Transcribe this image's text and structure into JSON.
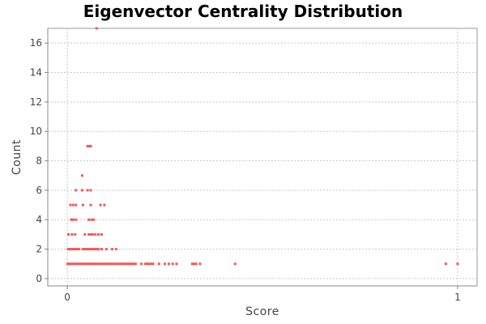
{
  "chart_data": {
    "type": "scatter",
    "title": "Eigenvector Centrality Distribution",
    "xlabel": "Score",
    "ylabel": "Count",
    "xlim": [
      -0.05,
      1.05
    ],
    "ylim": [
      -0.5,
      17.0
    ],
    "xticks": [
      0,
      1
    ],
    "yticks": [
      0,
      2,
      4,
      6,
      8,
      10,
      12,
      14,
      16
    ],
    "grid": true,
    "legend": "none",
    "point_color": "#f25a5a",
    "series": [
      {
        "points": [
          [
            0.075,
            17
          ],
          [
            0.052,
            9
          ],
          [
            0.056,
            9
          ],
          [
            0.06,
            9
          ],
          [
            0.038,
            7
          ],
          [
            0.022,
            6
          ],
          [
            0.038,
            6
          ],
          [
            0.052,
            6
          ],
          [
            0.06,
            6
          ],
          [
            0.008,
            5
          ],
          [
            0.015,
            5
          ],
          [
            0.022,
            5
          ],
          [
            0.04,
            5
          ],
          [
            0.06,
            5
          ],
          [
            0.085,
            5
          ],
          [
            0.095,
            5
          ],
          [
            0.01,
            4
          ],
          [
            0.015,
            4
          ],
          [
            0.022,
            4
          ],
          [
            0.055,
            4
          ],
          [
            0.062,
            4
          ],
          [
            0.068,
            4
          ],
          [
            0.003,
            3
          ],
          [
            0.012,
            3
          ],
          [
            0.02,
            3
          ],
          [
            0.045,
            3
          ],
          [
            0.055,
            3
          ],
          [
            0.06,
            3
          ],
          [
            0.065,
            3
          ],
          [
            0.072,
            3
          ],
          [
            0.08,
            3
          ],
          [
            0.088,
            3
          ],
          [
            0.002,
            2
          ],
          [
            0.006,
            2
          ],
          [
            0.01,
            2
          ],
          [
            0.015,
            2
          ],
          [
            0.02,
            2
          ],
          [
            0.025,
            2
          ],
          [
            0.03,
            2
          ],
          [
            0.04,
            2
          ],
          [
            0.045,
            2
          ],
          [
            0.05,
            2
          ],
          [
            0.055,
            2
          ],
          [
            0.06,
            2
          ],
          [
            0.065,
            2
          ],
          [
            0.07,
            2
          ],
          [
            0.075,
            2
          ],
          [
            0.08,
            2
          ],
          [
            0.088,
            2
          ],
          [
            0.1,
            2
          ],
          [
            0.115,
            2
          ],
          [
            0.125,
            2
          ],
          [
            0.001,
            1
          ],
          [
            0.004,
            1
          ],
          [
            0.008,
            1
          ],
          [
            0.012,
            1
          ],
          [
            0.016,
            1
          ],
          [
            0.02,
            1
          ],
          [
            0.024,
            1
          ],
          [
            0.028,
            1
          ],
          [
            0.032,
            1
          ],
          [
            0.036,
            1
          ],
          [
            0.04,
            1
          ],
          [
            0.044,
            1
          ],
          [
            0.048,
            1
          ],
          [
            0.052,
            1
          ],
          [
            0.056,
            1
          ],
          [
            0.06,
            1
          ],
          [
            0.064,
            1
          ],
          [
            0.068,
            1
          ],
          [
            0.072,
            1
          ],
          [
            0.076,
            1
          ],
          [
            0.08,
            1
          ],
          [
            0.084,
            1
          ],
          [
            0.088,
            1
          ],
          [
            0.092,
            1
          ],
          [
            0.096,
            1
          ],
          [
            0.1,
            1
          ],
          [
            0.105,
            1
          ],
          [
            0.11,
            1
          ],
          [
            0.115,
            1
          ],
          [
            0.12,
            1
          ],
          [
            0.125,
            1
          ],
          [
            0.13,
            1
          ],
          [
            0.135,
            1
          ],
          [
            0.14,
            1
          ],
          [
            0.145,
            1
          ],
          [
            0.15,
            1
          ],
          [
            0.155,
            1
          ],
          [
            0.16,
            1
          ],
          [
            0.165,
            1
          ],
          [
            0.17,
            1
          ],
          [
            0.175,
            1
          ],
          [
            0.19,
            1
          ],
          [
            0.2,
            1
          ],
          [
            0.205,
            1
          ],
          [
            0.21,
            1
          ],
          [
            0.215,
            1
          ],
          [
            0.22,
            1
          ],
          [
            0.235,
            1
          ],
          [
            0.25,
            1
          ],
          [
            0.26,
            1
          ],
          [
            0.27,
            1
          ],
          [
            0.28,
            1
          ],
          [
            0.32,
            1
          ],
          [
            0.325,
            1
          ],
          [
            0.33,
            1
          ],
          [
            0.34,
            1
          ],
          [
            0.43,
            1
          ],
          [
            0.97,
            1
          ],
          [
            1.0,
            1
          ]
        ]
      }
    ]
  }
}
